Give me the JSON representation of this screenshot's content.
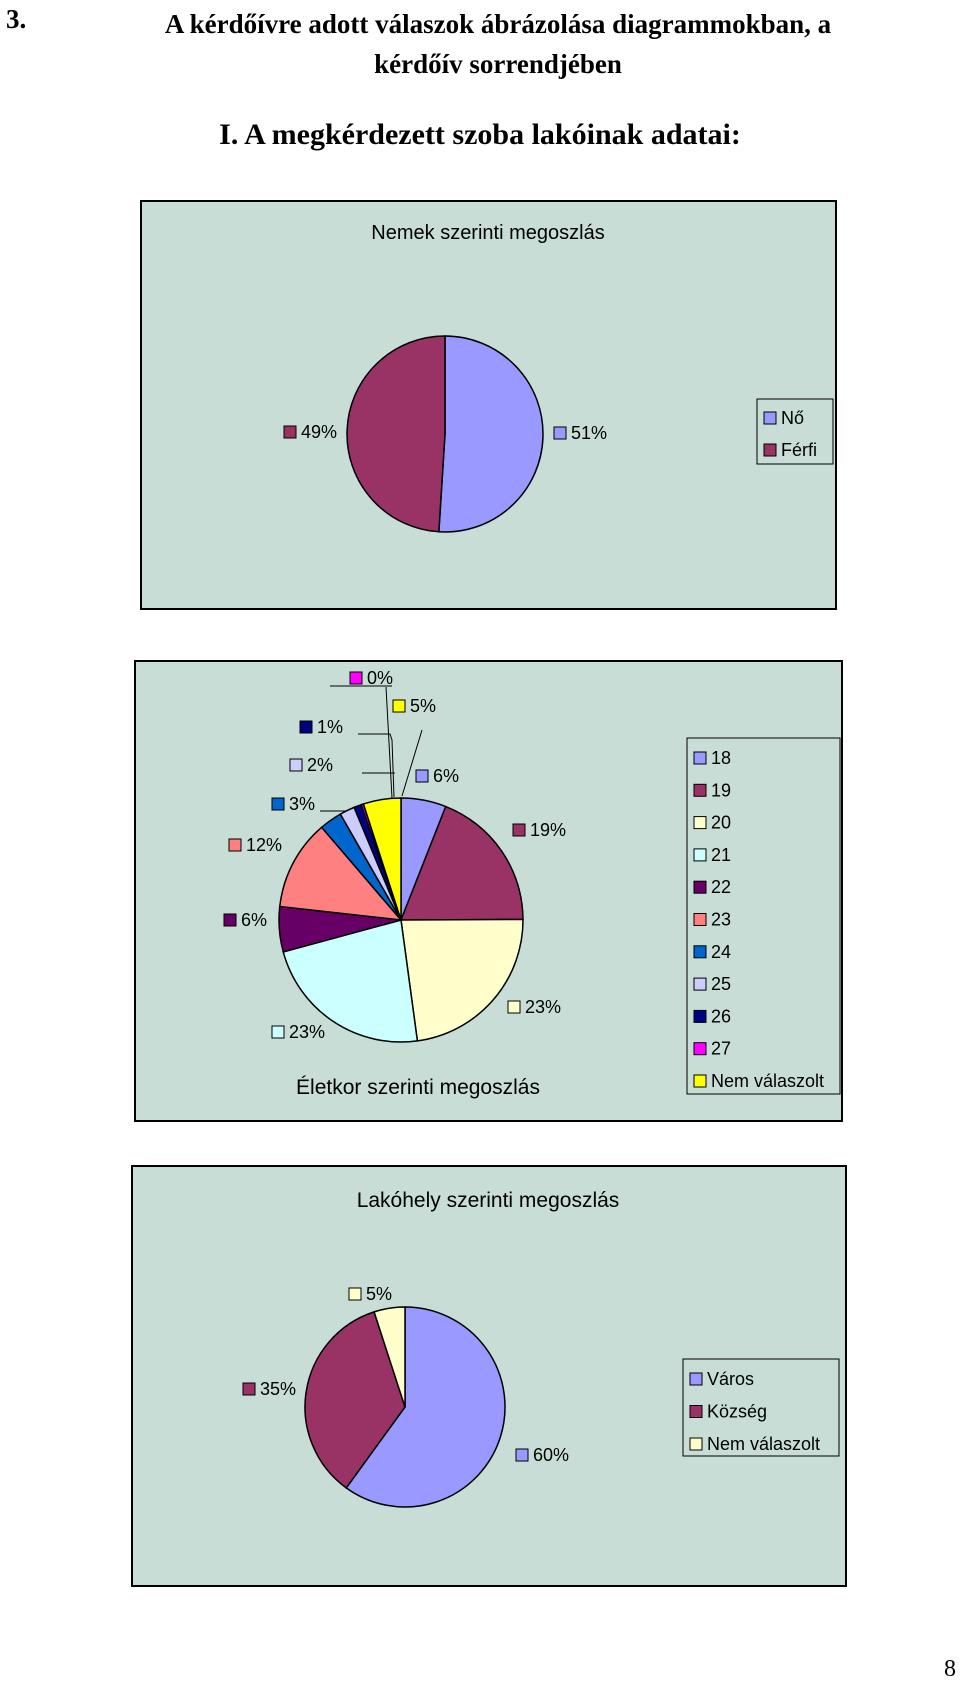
{
  "page": {
    "section_number": "3.",
    "section_title_line1": "A kérdőívre adott válaszok ábrázolása diagrammokban, a",
    "section_title_line2": "kérdőív sorrendjében",
    "subsection_title": "I. A megkérdezett szoba lakóinak adatai:",
    "page_number": "8"
  },
  "chart_data": [
    {
      "type": "pie",
      "title": "Nemek szerinti megoszlás",
      "legend_position": "right",
      "slices": [
        {
          "label": "Nő",
          "value": 51,
          "value_label": "51%",
          "color": "#9999ff"
        },
        {
          "label": "Férfi",
          "value": 49,
          "value_label": "49%",
          "color": "#993366"
        }
      ]
    },
    {
      "type": "pie",
      "title": "Életkor szerinti megoszlás",
      "legend_position": "right",
      "slices": [
        {
          "label": "18",
          "value": 6,
          "value_label": "6%",
          "color": "#9999ff"
        },
        {
          "label": "19",
          "value": 19,
          "value_label": "19%",
          "color": "#993366"
        },
        {
          "label": "20",
          "value": 23,
          "value_label": "23%",
          "color": "#ffffcc"
        },
        {
          "label": "21",
          "value": 23,
          "value_label": "23%",
          "color": "#ccffff"
        },
        {
          "label": "22",
          "value": 6,
          "value_label": "6%",
          "color": "#660066"
        },
        {
          "label": "23",
          "value": 12,
          "value_label": "12%",
          "color": "#ff8080"
        },
        {
          "label": "24",
          "value": 3,
          "value_label": "3%",
          "color": "#0066cc"
        },
        {
          "label": "25",
          "value": 2,
          "value_label": "2%",
          "color": "#ccccff"
        },
        {
          "label": "26",
          "value": 1,
          "value_label": "1%",
          "color": "#000080"
        },
        {
          "label": "27",
          "value": 0.3,
          "value_label": "0%",
          "color": "#ff00ff"
        },
        {
          "label": "Nem válaszolt",
          "value": 5,
          "value_label": "5%",
          "color": "#ffff00"
        }
      ]
    },
    {
      "type": "pie",
      "title": "Lakóhely szerinti megoszlás",
      "legend_position": "right",
      "slices": [
        {
          "label": "Város",
          "value": 60,
          "value_label": "60%",
          "color": "#9999ff"
        },
        {
          "label": "Község",
          "value": 35,
          "value_label": "35%",
          "color": "#993366"
        },
        {
          "label": "Nem válaszolt",
          "value": 5,
          "value_label": "5%",
          "color": "#ffffcc"
        }
      ]
    }
  ]
}
